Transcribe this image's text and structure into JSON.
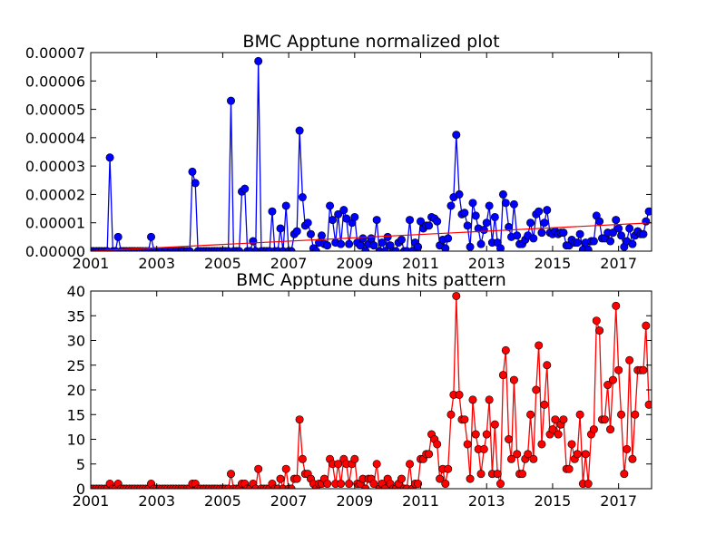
{
  "chart_data": [
    {
      "type": "line",
      "title": "BMC Apptune normalized plot",
      "marker": "o",
      "x": [
        2001,
        2001.08,
        2001.17,
        2001.25,
        2001.33,
        2001.42,
        2001.5,
        2001.58,
        2001.67,
        2001.75,
        2001.83,
        2001.92,
        2002,
        2002.08,
        2002.17,
        2002.25,
        2002.33,
        2002.42,
        2002.5,
        2002.58,
        2002.67,
        2002.75,
        2002.83,
        2002.92,
        2003,
        2003.08,
        2003.17,
        2003.25,
        2003.33,
        2003.42,
        2003.5,
        2003.58,
        2003.67,
        2003.75,
        2003.83,
        2003.92,
        2004,
        2004.08,
        2004.17,
        2004.25,
        2004.33,
        2004.42,
        2004.5,
        2004.58,
        2004.67,
        2004.75,
        2004.83,
        2004.92,
        2005,
        2005.08,
        2005.17,
        2005.25,
        2005.33,
        2005.42,
        2005.5,
        2005.58,
        2005.67,
        2005.75,
        2005.83,
        2005.92,
        2006,
        2006.08,
        2006.17,
        2006.25,
        2006.33,
        2006.42,
        2006.5,
        2006.58,
        2006.67,
        2006.75,
        2006.83,
        2006.92,
        2007,
        2007.08,
        2007.17,
        2007.25,
        2007.33,
        2007.42,
        2007.5,
        2007.58,
        2007.67,
        2007.75,
        2007.83,
        2007.92,
        2008,
        2008.08,
        2008.17,
        2008.25,
        2008.33,
        2008.42,
        2008.5,
        2008.58,
        2008.67,
        2008.75,
        2008.83,
        2008.92,
        2009,
        2009.08,
        2009.17,
        2009.25,
        2009.33,
        2009.42,
        2009.5,
        2009.58,
        2009.67,
        2009.75,
        2009.83,
        2009.92,
        2010,
        2010.08,
        2010.17,
        2010.25,
        2010.33,
        2010.42,
        2010.5,
        2010.58,
        2010.67,
        2010.75,
        2010.83,
        2010.92,
        2011,
        2011.08,
        2011.17,
        2011.25,
        2011.33,
        2011.42,
        2011.5,
        2011.58,
        2011.67,
        2011.75,
        2011.83,
        2011.92,
        2012,
        2012.08,
        2012.17,
        2012.25,
        2012.33,
        2012.42,
        2012.5,
        2012.58,
        2012.67,
        2012.75,
        2012.83,
        2012.92,
        2013,
        2013.08,
        2013.17,
        2013.25,
        2013.33,
        2013.42,
        2013.5,
        2013.58,
        2013.67,
        2013.75,
        2013.83,
        2013.92,
        2014,
        2014.08,
        2014.17,
        2014.25,
        2014.33,
        2014.42,
        2014.5,
        2014.58,
        2014.67,
        2014.75,
        2014.83,
        2014.92,
        2015,
        2015.08,
        2015.17,
        2015.25,
        2015.33,
        2015.42,
        2015.5,
        2015.58,
        2015.67,
        2015.75,
        2015.83,
        2015.92,
        2016,
        2016.08,
        2016.17,
        2016.25,
        2016.33,
        2016.42,
        2016.5,
        2016.58,
        2016.67,
        2016.75,
        2016.83,
        2016.92,
        2017,
        2017.08,
        2017.17,
        2017.25,
        2017.33,
        2017.42,
        2017.5,
        2017.58,
        2017.67,
        2017.75,
        2017.83,
        2017.92
      ],
      "series": [
        {
          "color": "#0000ff",
          "values": [
            0,
            0,
            0,
            0,
            0,
            0,
            0,
            3.3e-05,
            0,
            0,
            5e-06,
            0,
            0,
            0,
            0,
            0,
            0,
            0,
            0,
            0,
            0,
            0,
            5e-06,
            0,
            0,
            0,
            0,
            0,
            0,
            0,
            0,
            0,
            0,
            0,
            0,
            0,
            0,
            2.8e-05,
            2.4e-05,
            0,
            0,
            0,
            0,
            0,
            0,
            0,
            0,
            0,
            0,
            0,
            0,
            5.3e-05,
            0,
            0,
            0,
            2.1e-05,
            2.2e-05,
            0,
            0,
            3.5e-06,
            0,
            6.7e-05,
            0,
            0,
            0,
            0,
            1.4e-05,
            0,
            0,
            8e-06,
            0,
            1.6e-05,
            0,
            0,
            6e-06,
            7e-06,
            4.25e-05,
            1.9e-05,
            9e-06,
            1e-05,
            6e-06,
            1e-06,
            0,
            3e-06,
            5.5e-06,
            2.5e-06,
            2e-06,
            1.6e-05,
            1.1e-05,
            3e-06,
            1.3e-05,
            2.5e-06,
            1.45e-05,
            1.15e-05,
            2.5e-06,
            1e-05,
            1.2e-05,
            3e-06,
            2e-06,
            4.5e-06,
            0,
            2.5e-06,
            4.5e-06,
            2e-06,
            1.1e-05,
            0,
            3e-06,
            0,
            5e-06,
            2e-06,
            0,
            0,
            3e-06,
            4e-06,
            0,
            0,
            1.1e-05,
            0,
            3e-06,
            1.5e-06,
            1.05e-05,
            8e-06,
            9e-06,
            9e-06,
            1.2e-05,
            1.15e-05,
            1.05e-05,
            2e-06,
            4e-06,
            1e-06,
            4.5e-06,
            1.6e-05,
            1.9e-05,
            4.1e-05,
            2e-05,
            1.3e-05,
            1.35e-05,
            9e-06,
            1.5e-06,
            1.7e-05,
            1.25e-05,
            8e-06,
            2.5e-06,
            7.5e-06,
            1e-05,
            1.6e-05,
            3e-06,
            1.2e-05,
            3e-06,
            1e-06,
            2e-05,
            1.7e-05,
            8.5e-06,
            5e-06,
            1.65e-05,
            5.5e-06,
            2.5e-06,
            2.5e-06,
            4e-06,
            5.5e-06,
            1e-05,
            4.5e-06,
            1.3e-05,
            1.4e-05,
            6.5e-06,
            1e-05,
            1.45e-05,
            6.5e-06,
            6e-06,
            7e-06,
            6e-06,
            6.5e-06,
            6.5e-06,
            2e-06,
            2e-06,
            4e-06,
            3e-06,
            3e-06,
            6e-06,
            5e-07,
            3e-06,
            5e-07,
            3.5e-06,
            3.5e-06,
            1.25e-05,
            1.05e-05,
            4.5e-06,
            4.5e-06,
            6.5e-06,
            3.5e-06,
            6.5e-06,
            1.1e-05,
            8e-06,
            5.5e-06,
            1.5e-06,
            3.5e-06,
            8e-06,
            2.5e-06,
            5.5e-06,
            7e-06,
            6e-06,
            6e-06,
            1.05e-05,
            1.4e-05
          ]
        }
      ],
      "trend": {
        "x": [
          2001,
          2018
        ],
        "values": [
          0,
          1e-05
        ],
        "color": "#ff0000"
      },
      "xlim": [
        2001,
        2018
      ],
      "xticks": [
        2001,
        2003,
        2005,
        2007,
        2009,
        2011,
        2013,
        2015,
        2017
      ],
      "ylim": [
        0,
        7e-05
      ],
      "yticks": [
        {
          "value": 0,
          "label": "0.00000"
        },
        {
          "value": 1e-05,
          "label": "0.00001"
        },
        {
          "value": 2e-05,
          "label": "0.00002"
        },
        {
          "value": 3e-05,
          "label": "0.00003"
        },
        {
          "value": 4e-05,
          "label": "0.00004"
        },
        {
          "value": 5e-05,
          "label": "0.00005"
        },
        {
          "value": 6e-05,
          "label": "0.00006"
        },
        {
          "value": 7e-05,
          "label": "0.00007"
        }
      ]
    },
    {
      "type": "line",
      "title": "BMC Apptune duns hits pattern",
      "marker": "o",
      "x": [
        2001,
        2001.08,
        2001.17,
        2001.25,
        2001.33,
        2001.42,
        2001.5,
        2001.58,
        2001.67,
        2001.75,
        2001.83,
        2001.92,
        2002,
        2002.08,
        2002.17,
        2002.25,
        2002.33,
        2002.42,
        2002.5,
        2002.58,
        2002.67,
        2002.75,
        2002.83,
        2002.92,
        2003,
        2003.08,
        2003.17,
        2003.25,
        2003.33,
        2003.42,
        2003.5,
        2003.58,
        2003.67,
        2003.75,
        2003.83,
        2003.92,
        2004,
        2004.08,
        2004.17,
        2004.25,
        2004.33,
        2004.42,
        2004.5,
        2004.58,
        2004.67,
        2004.75,
        2004.83,
        2004.92,
        2005,
        2005.08,
        2005.17,
        2005.25,
        2005.33,
        2005.42,
        2005.5,
        2005.58,
        2005.67,
        2005.75,
        2005.83,
        2005.92,
        2006,
        2006.08,
        2006.17,
        2006.25,
        2006.33,
        2006.42,
        2006.5,
        2006.58,
        2006.67,
        2006.75,
        2006.83,
        2006.92,
        2007,
        2007.08,
        2007.17,
        2007.25,
        2007.33,
        2007.42,
        2007.5,
        2007.58,
        2007.67,
        2007.75,
        2007.83,
        2007.92,
        2008,
        2008.08,
        2008.17,
        2008.25,
        2008.33,
        2008.42,
        2008.5,
        2008.58,
        2008.67,
        2008.75,
        2008.83,
        2008.92,
        2009,
        2009.08,
        2009.17,
        2009.25,
        2009.33,
        2009.42,
        2009.5,
        2009.58,
        2009.67,
        2009.75,
        2009.83,
        2009.92,
        2010,
        2010.08,
        2010.17,
        2010.25,
        2010.33,
        2010.42,
        2010.5,
        2010.58,
        2010.67,
        2010.75,
        2010.83,
        2010.92,
        2011,
        2011.08,
        2011.17,
        2011.25,
        2011.33,
        2011.42,
        2011.5,
        2011.58,
        2011.67,
        2011.75,
        2011.83,
        2011.92,
        2012,
        2012.08,
        2012.17,
        2012.25,
        2012.33,
        2012.42,
        2012.5,
        2012.58,
        2012.67,
        2012.75,
        2012.83,
        2012.92,
        2013,
        2013.08,
        2013.17,
        2013.25,
        2013.33,
        2013.42,
        2013.5,
        2013.58,
        2013.67,
        2013.75,
        2013.83,
        2013.92,
        2014,
        2014.08,
        2014.17,
        2014.25,
        2014.33,
        2014.42,
        2014.5,
        2014.58,
        2014.67,
        2014.75,
        2014.83,
        2014.92,
        2015,
        2015.08,
        2015.17,
        2015.25,
        2015.33,
        2015.42,
        2015.5,
        2015.58,
        2015.67,
        2015.75,
        2015.83,
        2015.92,
        2016,
        2016.08,
        2016.17,
        2016.25,
        2016.33,
        2016.42,
        2016.5,
        2016.58,
        2016.67,
        2016.75,
        2016.83,
        2016.92,
        2017,
        2017.08,
        2017.17,
        2017.25,
        2017.33,
        2017.42,
        2017.5,
        2017.58,
        2017.67,
        2017.75,
        2017.83,
        2017.92
      ],
      "series": [
        {
          "color": "#ff0000",
          "values": [
            0,
            0,
            0,
            0,
            0,
            0,
            0,
            1,
            0,
            0,
            1,
            0,
            0,
            0,
            0,
            0,
            0,
            0,
            0,
            0,
            0,
            0,
            1,
            0,
            0,
            0,
            0,
            0,
            0,
            0,
            0,
            0,
            0,
            0,
            0,
            0,
            0,
            1,
            1,
            0,
            0,
            0,
            0,
            0,
            0,
            0,
            0,
            0,
            0,
            0,
            0,
            3,
            0,
            0,
            0,
            1,
            1,
            0,
            0,
            1,
            0,
            4,
            0,
            0,
            0,
            0,
            1,
            0,
            0,
            2,
            0,
            4,
            0,
            0,
            2,
            2,
            14,
            6,
            3,
            3,
            2,
            1,
            0,
            1,
            1,
            2,
            1,
            6,
            5,
            1,
            5,
            1,
            6,
            5,
            1,
            5,
            6,
            1,
            1,
            2,
            0,
            2,
            2,
            1,
            5,
            0,
            1,
            0,
            2,
            1,
            0,
            0,
            1,
            2,
            0,
            0,
            5,
            0,
            1,
            1,
            6,
            6,
            7,
            7,
            11,
            10,
            9,
            2,
            4,
            1,
            4,
            15,
            19,
            39,
            19,
            14,
            14,
            9,
            2,
            18,
            11,
            8,
            3,
            8,
            11,
            18,
            3,
            13,
            3,
            1,
            23,
            28,
            10,
            6,
            22,
            7,
            3,
            3,
            6,
            7,
            15,
            6,
            20,
            29,
            9,
            17,
            25,
            11,
            12,
            14,
            11,
            13,
            14,
            4,
            4,
            9,
            6,
            7,
            15,
            1,
            7,
            1,
            11,
            12,
            34,
            32,
            14,
            14,
            21,
            12,
            22,
            37,
            24,
            15,
            3,
            8,
            26,
            6,
            15,
            24,
            24,
            24,
            33,
            17
          ]
        }
      ],
      "xlim": [
        2001,
        2018
      ],
      "xticks": [
        2001,
        2003,
        2005,
        2007,
        2009,
        2011,
        2013,
        2015,
        2017
      ],
      "ylim": [
        0,
        40
      ],
      "yticks": [
        0,
        5,
        10,
        15,
        20,
        25,
        30,
        35,
        40
      ]
    }
  ]
}
